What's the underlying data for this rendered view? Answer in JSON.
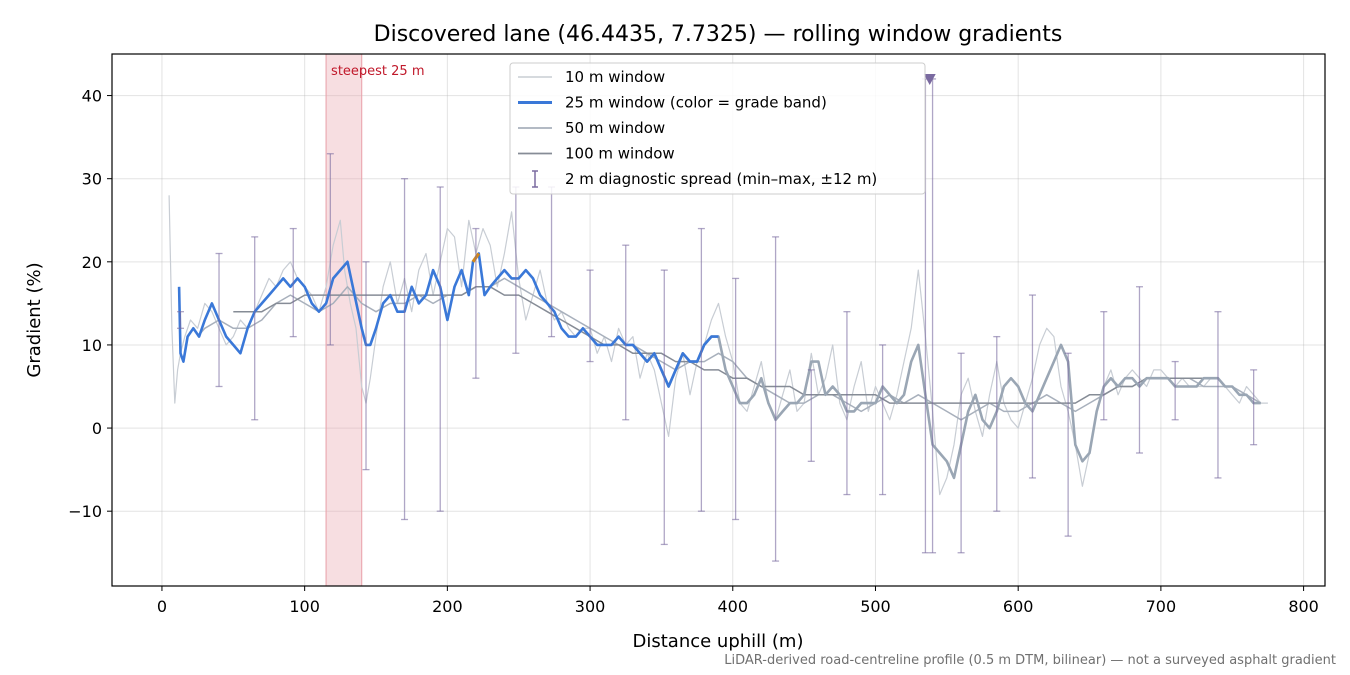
{
  "chart_data": {
    "type": "line",
    "title": "Discovered lane (46.4435, 7.7325) — rolling window gradients",
    "xlabel": "Distance uphill (m)",
    "ylabel": "Gradient (%)",
    "xlim": [
      -35,
      815
    ],
    "ylim": [
      -19,
      45
    ],
    "xticks": [
      0,
      100,
      200,
      300,
      400,
      500,
      600,
      700,
      800
    ],
    "yticks": [
      -10,
      0,
      10,
      20,
      30,
      40
    ],
    "grid": true,
    "legend_position": "top-center",
    "footnote": "LiDAR-derived road-centreline profile (0.5 m DTM, bilinear) — not a surveyed asphalt gradient",
    "steepest_band": {
      "label": "steepest 25 m",
      "x_start": 115,
      "x_end": 140,
      "color": "#e8a0a8"
    },
    "marker": {
      "x": 538,
      "y": 42,
      "color": "#7a6aa0",
      "shape": "triangle-down"
    },
    "series": [
      {
        "name": "10 m window",
        "color": "#c8cdd4",
        "width": 1.2,
        "x": [
          5,
          7,
          9,
          11,
          13,
          16,
          20,
          25,
          30,
          35,
          40,
          45,
          50,
          55,
          60,
          65,
          70,
          75,
          80,
          85,
          90,
          95,
          100,
          105,
          110,
          115,
          120,
          125,
          128,
          132,
          136,
          140,
          143,
          146,
          150,
          155,
          160,
          165,
          170,
          175,
          180,
          185,
          190,
          195,
          200,
          205,
          210,
          215,
          220,
          225,
          230,
          235,
          240,
          245,
          250,
          255,
          260,
          265,
          270,
          275,
          280,
          285,
          290,
          295,
          300,
          305,
          310,
          315,
          320,
          325,
          330,
          335,
          340,
          345,
          350,
          355,
          360,
          365,
          370,
          375,
          380,
          385,
          390,
          395,
          400,
          405,
          410,
          415,
          420,
          425,
          430,
          435,
          440,
          445,
          450,
          455,
          460,
          465,
          470,
          475,
          480,
          485,
          490,
          495,
          500,
          505,
          510,
          515,
          520,
          525,
          530,
          535,
          540,
          545,
          550,
          555,
          560,
          565,
          570,
          575,
          580,
          585,
          590,
          595,
          600,
          605,
          610,
          615,
          620,
          625,
          630,
          635,
          640,
          645,
          650,
          655,
          660,
          665,
          670,
          675,
          680,
          685,
          690,
          695,
          700,
          705,
          710,
          715,
          720,
          725,
          730,
          735,
          740,
          745,
          750,
          755,
          760,
          765,
          770,
          775
        ],
        "values": [
          28,
          12,
          3,
          7,
          9,
          11,
          13,
          12,
          15,
          14,
          12,
          10,
          11,
          13,
          12,
          14,
          16,
          18,
          17,
          19,
          20,
          18,
          17,
          16,
          14,
          17,
          22,
          25,
          19,
          15,
          12,
          5,
          3,
          6,
          11,
          17,
          20,
          15,
          18,
          14,
          19,
          21,
          16,
          20,
          24,
          23,
          17,
          25,
          21,
          24,
          22,
          17,
          21,
          26,
          18,
          13,
          16,
          19,
          15,
          13,
          14,
          12,
          11,
          12,
          12,
          9,
          11,
          8,
          12,
          10,
          11,
          6,
          9,
          7,
          3,
          -1,
          6,
          9,
          4,
          8,
          10,
          13,
          15,
          11,
          8,
          3,
          2,
          5,
          8,
          3,
          1,
          4,
          7,
          2,
          3,
          9,
          4,
          6,
          10,
          3,
          1,
          5,
          8,
          2,
          5,
          3,
          1,
          4,
          8,
          12,
          19,
          11,
          2,
          -8,
          -6,
          -2,
          4,
          6,
          2,
          -1,
          4,
          8,
          3,
          1,
          0,
          3,
          6,
          10,
          12,
          11,
          5,
          2,
          -2,
          -7,
          -3,
          2,
          5,
          7,
          4,
          6,
          7,
          6,
          5,
          7,
          7,
          6,
          5,
          6,
          5,
          5,
          5,
          6,
          6,
          5,
          4,
          3,
          5,
          4,
          3,
          3
        ]
      },
      {
        "name": "25 m window (color = grade band)",
        "color": "#3a78d8",
        "color_later": "#9aa6b4",
        "highlight_color": "#d4891a",
        "width": 2.6,
        "x": [
          12,
          13,
          15,
          18,
          22,
          26,
          30,
          35,
          40,
          45,
          50,
          55,
          60,
          65,
          70,
          75,
          80,
          85,
          90,
          95,
          100,
          105,
          110,
          115,
          120,
          125,
          130,
          135,
          140,
          143,
          146,
          150,
          155,
          160,
          165,
          170,
          175,
          180,
          185,
          190,
          195,
          200,
          205,
          210,
          215,
          218,
          222,
          226,
          230,
          235,
          240,
          245,
          250,
          255,
          260,
          265,
          270,
          275,
          280,
          285,
          290,
          295,
          300,
          305,
          310,
          315,
          320,
          325,
          330,
          335,
          340,
          345,
          350,
          355,
          360,
          365,
          370,
          375,
          380,
          385,
          390,
          395,
          400,
          405,
          410,
          415,
          420,
          425,
          430,
          435,
          440,
          445,
          450,
          455,
          460,
          465,
          470,
          475,
          480,
          485,
          490,
          495,
          500,
          505,
          510,
          515,
          520,
          525,
          530,
          535,
          540,
          545,
          550,
          555,
          560,
          565,
          570,
          575,
          580,
          585,
          590,
          595,
          600,
          605,
          610,
          615,
          620,
          625,
          630,
          635,
          640,
          645,
          650,
          655,
          660,
          665,
          670,
          675,
          680,
          685,
          690,
          695,
          700,
          705,
          710,
          715,
          720,
          725,
          730,
          735,
          740,
          745,
          750,
          755,
          760,
          765,
          770
        ],
        "values": [
          17,
          9,
          8,
          11,
          12,
          11,
          13,
          15,
          13,
          11,
          10,
          9,
          12,
          14,
          15,
          16,
          17,
          18,
          17,
          18,
          17,
          15,
          14,
          15,
          18,
          19,
          20,
          16,
          12,
          10,
          10,
          12,
          15,
          16,
          14,
          14,
          17,
          15,
          16,
          19,
          17,
          13,
          17,
          19,
          16,
          20,
          21,
          16,
          17,
          18,
          19,
          18,
          18,
          19,
          18,
          16,
          15,
          14,
          12,
          11,
          11,
          12,
          11,
          10,
          10,
          10,
          11,
          10,
          10,
          9,
          8,
          9,
          7,
          5,
          7,
          9,
          8,
          8,
          10,
          11,
          11,
          7,
          5,
          3,
          3,
          4,
          6,
          3,
          1,
          2,
          3,
          3,
          4,
          8,
          8,
          4,
          5,
          4,
          2,
          2,
          3,
          3,
          3,
          5,
          4,
          3,
          4,
          8,
          10,
          4,
          -2,
          -3,
          -4,
          -6,
          -2,
          2,
          4,
          1,
          0,
          2,
          5,
          6,
          5,
          3,
          2,
          4,
          6,
          8,
          10,
          8,
          -2,
          -4,
          -3,
          2,
          5,
          6,
          5,
          6,
          6,
          5,
          6,
          6,
          6,
          6,
          5,
          5,
          5,
          5,
          6,
          6,
          6,
          5,
          5,
          4,
          4,
          3,
          3
        ],
        "blue_until_x": 392,
        "highlight_x_range": [
          216,
          224
        ]
      },
      {
        "name": "50 m window",
        "color": "#a8b0bc",
        "width": 1.5,
        "x": [
          25,
          30,
          40,
          50,
          60,
          70,
          80,
          90,
          100,
          110,
          120,
          130,
          140,
          150,
          160,
          170,
          180,
          190,
          200,
          210,
          220,
          230,
          240,
          250,
          260,
          270,
          280,
          290,
          300,
          310,
          320,
          330,
          340,
          350,
          360,
          370,
          380,
          390,
          400,
          410,
          420,
          430,
          440,
          450,
          460,
          470,
          480,
          490,
          500,
          510,
          520,
          530,
          540,
          550,
          560,
          570,
          580,
          590,
          600,
          610,
          620,
          630,
          640,
          650,
          660,
          670,
          680,
          690,
          700,
          710,
          720,
          730,
          740,
          750,
          760,
          770
        ],
        "values": [
          11,
          12,
          13,
          12,
          12,
          13,
          15,
          16,
          15,
          14,
          15,
          17,
          15,
          14,
          15,
          15,
          16,
          15,
          16,
          16,
          17,
          17,
          18,
          17,
          16,
          15,
          14,
          13,
          12,
          11,
          10,
          10,
          9,
          8,
          7,
          8,
          8,
          9,
          8,
          6,
          5,
          4,
          3,
          3,
          4,
          4,
          3,
          2,
          3,
          4,
          3,
          4,
          3,
          2,
          1,
          2,
          3,
          2,
          2,
          3,
          4,
          3,
          2,
          3,
          4,
          5,
          5,
          6,
          6,
          6,
          6,
          5,
          5,
          5,
          4,
          3
        ]
      },
      {
        "name": "100 m window",
        "color": "#868c96",
        "width": 1.5,
        "x": [
          50,
          60,
          70,
          80,
          90,
          100,
          110,
          120,
          130,
          140,
          150,
          160,
          170,
          180,
          190,
          200,
          210,
          220,
          230,
          240,
          250,
          260,
          270,
          280,
          290,
          300,
          310,
          320,
          330,
          340,
          350,
          360,
          370,
          380,
          390,
          400,
          410,
          420,
          430,
          440,
          450,
          460,
          470,
          480,
          490,
          500,
          510,
          520,
          530,
          540,
          550,
          560,
          570,
          580,
          590,
          600,
          610,
          620,
          630,
          640,
          650,
          660,
          670,
          680,
          690,
          700,
          710,
          720,
          730,
          740
        ],
        "values": [
          14,
          14,
          14,
          15,
          15,
          16,
          16,
          16,
          16,
          16,
          16,
          16,
          16,
          16,
          16,
          16,
          16,
          17,
          17,
          16,
          16,
          15,
          14,
          13,
          12,
          11,
          10,
          10,
          9,
          9,
          9,
          8,
          8,
          7,
          7,
          6,
          6,
          5,
          5,
          5,
          4,
          4,
          4,
          4,
          4,
          4,
          3,
          3,
          3,
          3,
          3,
          3,
          3,
          3,
          3,
          3,
          3,
          3,
          3,
          3,
          4,
          4,
          5,
          5,
          6,
          6,
          6,
          6,
          6,
          6
        ]
      }
    ],
    "error_bars": {
      "name": "2 m diagnostic spread (min–max, ±12 m)",
      "color": "#7a6aa0",
      "x": [
        13,
        40,
        65,
        92,
        118,
        143,
        170,
        195,
        220,
        248,
        273,
        300,
        325,
        352,
        378,
        402,
        430,
        455,
        480,
        505,
        535,
        540,
        560,
        585,
        610,
        635,
        660,
        685,
        710,
        740,
        765
      ],
      "low": [
        12,
        5,
        1,
        11,
        10,
        -5,
        -11,
        -10,
        6,
        9,
        11,
        8,
        1,
        -14,
        -10,
        -11,
        -16,
        -4,
        -8,
        -8,
        -15,
        -15,
        -15,
        -10,
        -6,
        -13,
        1,
        -3,
        1,
        -6,
        -2
      ],
      "high": [
        14,
        21,
        23,
        24,
        33,
        20,
        30,
        29,
        24,
        29,
        29,
        19,
        22,
        19,
        24,
        18,
        23,
        7,
        14,
        10,
        42,
        42,
        9,
        11,
        16,
        9,
        14,
        17,
        8,
        14,
        7
      ]
    }
  }
}
